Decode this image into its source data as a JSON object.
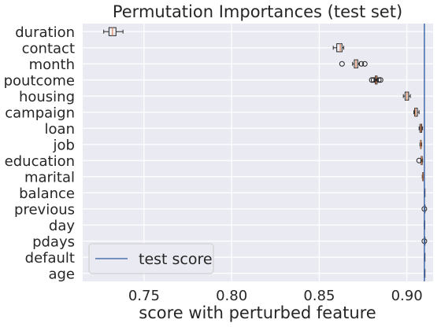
{
  "chart_data": {
    "type": "boxplot",
    "orientation": "horizontal",
    "title": "Permutation Importances (test set)",
    "xlabel": "score with perturbed feature",
    "ylabel": "",
    "xlim": [
      0.715,
      0.915
    ],
    "xticks": [
      0.75,
      0.8,
      0.85,
      0.9
    ],
    "xtick_labels": [
      "0.75",
      "0.80",
      "0.85",
      "0.90"
    ],
    "grid": true,
    "legend_position": "lower-left",
    "reference_line": {
      "label": "test score",
      "x": 0.91,
      "color": "#4c72b0"
    },
    "colors": {
      "background": "#eaeaf2",
      "grid": "#ffffff",
      "box": "#262626",
      "median": "#dd8452",
      "text": "#262626"
    },
    "features": [
      {
        "name": "duration",
        "whislo": 0.727,
        "q1": 0.73,
        "med": 0.732,
        "q3": 0.734,
        "whishi": 0.738,
        "fliers": []
      },
      {
        "name": "contact",
        "whislo": 0.858,
        "q1": 0.86,
        "med": 0.862,
        "q3": 0.863,
        "whishi": 0.864,
        "fliers": []
      },
      {
        "name": "month",
        "whislo": 0.869,
        "q1": 0.87,
        "med": 0.871,
        "q3": 0.872,
        "whishi": 0.873,
        "fliers": [
          0.863,
          0.874,
          0.876
        ]
      },
      {
        "name": "poutcome",
        "whislo": 0.8815,
        "q1": 0.882,
        "med": 0.8825,
        "q3": 0.883,
        "whishi": 0.8835,
        "fliers": [
          0.88,
          0.881,
          0.884,
          0.885
        ]
      },
      {
        "name": "housing",
        "whislo": 0.898,
        "q1": 0.899,
        "med": 0.9,
        "q3": 0.901,
        "whishi": 0.902,
        "fliers": []
      },
      {
        "name": "campaign",
        "whislo": 0.904,
        "q1": 0.9045,
        "med": 0.905,
        "q3": 0.906,
        "whishi": 0.907,
        "fliers": []
      },
      {
        "name": "loan",
        "whislo": 0.907,
        "q1": 0.9075,
        "med": 0.908,
        "q3": 0.9085,
        "whishi": 0.909,
        "fliers": []
      },
      {
        "name": "job",
        "whislo": 0.9075,
        "q1": 0.9078,
        "med": 0.908,
        "q3": 0.9082,
        "whishi": 0.9085,
        "fliers": []
      },
      {
        "name": "education",
        "whislo": 0.908,
        "q1": 0.9082,
        "med": 0.9085,
        "q3": 0.9088,
        "whishi": 0.909,
        "fliers": [
          0.907
        ]
      },
      {
        "name": "marital",
        "whislo": 0.9088,
        "q1": 0.909,
        "med": 0.9092,
        "q3": 0.9094,
        "whishi": 0.9096,
        "fliers": []
      },
      {
        "name": "balance",
        "whislo": 0.91,
        "q1": 0.91,
        "med": 0.91,
        "q3": 0.91,
        "whishi": 0.91,
        "fliers": []
      },
      {
        "name": "previous",
        "whislo": 0.91,
        "q1": 0.91,
        "med": 0.91,
        "q3": 0.91,
        "whishi": 0.91,
        "fliers": [
          0.91
        ]
      },
      {
        "name": "day",
        "whislo": 0.9098,
        "q1": 0.9099,
        "med": 0.91,
        "q3": 0.9101,
        "whishi": 0.9102,
        "fliers": []
      },
      {
        "name": "pdays",
        "whislo": 0.91,
        "q1": 0.91,
        "med": 0.91,
        "q3": 0.91,
        "whishi": 0.91,
        "fliers": [
          0.91
        ]
      },
      {
        "name": "default",
        "whislo": 0.91,
        "q1": 0.91,
        "med": 0.91,
        "q3": 0.91,
        "whishi": 0.91,
        "fliers": []
      },
      {
        "name": "age",
        "whislo": 0.91,
        "q1": 0.91,
        "med": 0.91,
        "q3": 0.91,
        "whishi": 0.91,
        "fliers": []
      }
    ]
  }
}
